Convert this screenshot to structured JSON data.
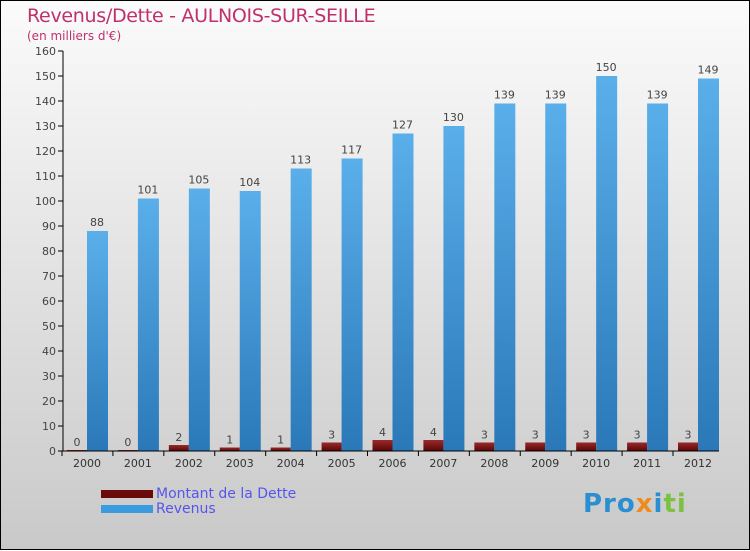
{
  "chart_data": {
    "type": "bar",
    "title": "Revenus/Dette - AULNOIS-SUR-SEILLE",
    "subtitle": "(en milliers d'€)",
    "categories": [
      "2000",
      "2001",
      "2002",
      "2003",
      "2004",
      "2005",
      "2006",
      "2007",
      "2008",
      "2009",
      "2010",
      "2011",
      "2012"
    ],
    "series": [
      {
        "name": "Montant de la Dette",
        "color": "#6b0a0a",
        "values": [
          0,
          0,
          2,
          1,
          1,
          3,
          4,
          4,
          3,
          3,
          3,
          3,
          3
        ]
      },
      {
        "name": "Revenus",
        "color": "#3a9be0",
        "values": [
          88,
          101,
          105,
          104,
          113,
          117,
          127,
          130,
          139,
          139,
          150,
          139,
          149
        ]
      }
    ],
    "ylim": [
      0,
      160
    ],
    "yticks": [
      0,
      10,
      20,
      30,
      40,
      50,
      60,
      70,
      80,
      90,
      100,
      110,
      120,
      130,
      140,
      150,
      160
    ],
    "legend": "bottom-left",
    "grid": false
  },
  "logo": "Proxiti"
}
